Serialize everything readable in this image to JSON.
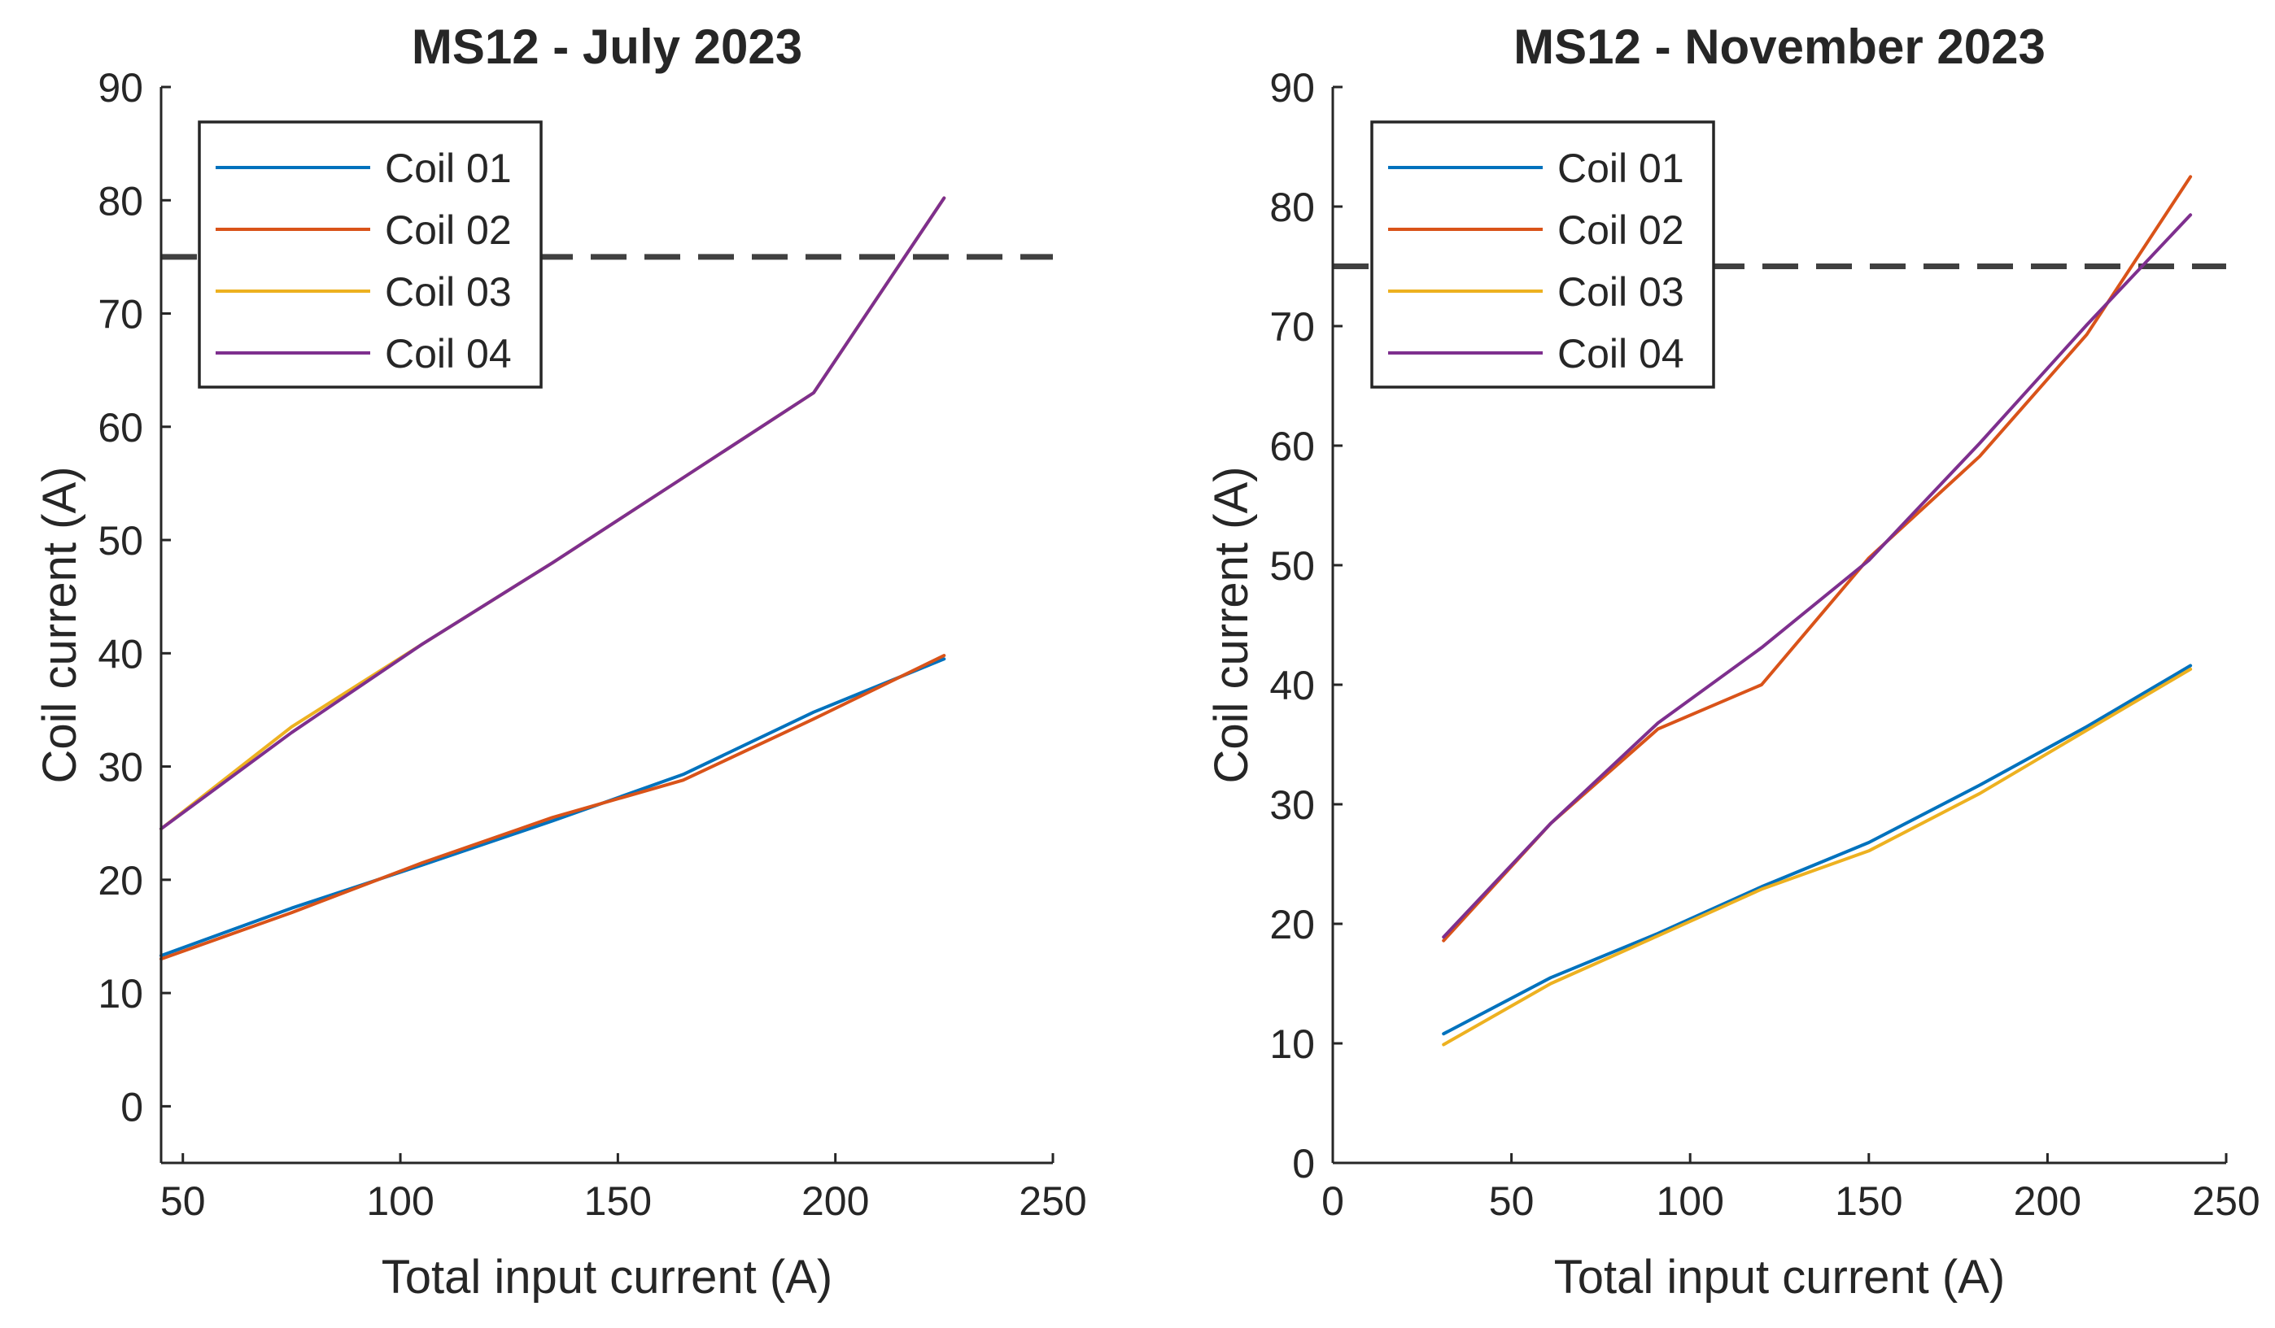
{
  "chart_data": [
    {
      "type": "line",
      "title": "MS12 - July 2023",
      "xlabel": "Total input current (A)",
      "ylabel": "Coil current (A)",
      "xlim": [
        45,
        250
      ],
      "ylim": [
        -5,
        90
      ],
      "xticks": [
        50,
        100,
        150,
        200,
        250
      ],
      "yticks": [
        0,
        10,
        20,
        30,
        40,
        50,
        60,
        70,
        80,
        90
      ],
      "threshold": 75,
      "legend_position": "top-left",
      "series": [
        {
          "name": "Coil 01",
          "color": "#0072BD",
          "x": [
            45,
            75,
            105,
            135,
            165,
            195,
            225
          ],
          "y": [
            13.3,
            17.5,
            21.3,
            25.2,
            29.3,
            34.8,
            39.5
          ]
        },
        {
          "name": "Coil 02",
          "color": "#D95319",
          "x": [
            45,
            75,
            105,
            135,
            165,
            195,
            225
          ],
          "y": [
            13.0,
            17.1,
            21.5,
            25.5,
            28.8,
            34.2,
            39.8
          ]
        },
        {
          "name": "Coil 03",
          "color": "#EDB120",
          "x": [
            45,
            75,
            105,
            135,
            165,
            195,
            225
          ],
          "y": [
            24.5,
            33.5,
            40.8,
            48.0,
            55.5,
            63.0,
            80.2
          ]
        },
        {
          "name": "Coil 04",
          "color": "#7E2F8E",
          "x": [
            45,
            75,
            105,
            135,
            165,
            195,
            225
          ],
          "y": [
            24.5,
            33.0,
            40.8,
            48.0,
            55.5,
            63.0,
            80.2
          ]
        }
      ]
    },
    {
      "type": "line",
      "title": "MS12 - November 2023",
      "xlabel": "Total input current (A)",
      "ylabel": "Coil current (A)",
      "xlim": [
        0,
        250
      ],
      "ylim": [
        0,
        90
      ],
      "xticks": [
        0,
        50,
        100,
        150,
        200,
        250
      ],
      "yticks": [
        0,
        10,
        20,
        30,
        40,
        50,
        60,
        70,
        80,
        90
      ],
      "threshold": 75,
      "legend_position": "top-left",
      "series": [
        {
          "name": "Coil 01",
          "color": "#0072BD",
          "x": [
            31,
            61,
            91,
            120,
            150,
            181,
            211,
            240
          ],
          "y": [
            10.8,
            15.5,
            19.2,
            23.1,
            26.8,
            31.6,
            36.5,
            41.6
          ]
        },
        {
          "name": "Coil 02",
          "color": "#D95319",
          "x": [
            31,
            61,
            91,
            120,
            150,
            181,
            211,
            240
          ],
          "y": [
            18.6,
            28.4,
            36.3,
            40.0,
            50.6,
            59.1,
            69.3,
            82.5
          ]
        },
        {
          "name": "Coil 03",
          "color": "#EDB120",
          "x": [
            31,
            61,
            91,
            120,
            150,
            181,
            211,
            240
          ],
          "y": [
            9.9,
            15.0,
            19.0,
            22.9,
            26.1,
            30.9,
            36.2,
            41.3
          ]
        },
        {
          "name": "Coil 04",
          "color": "#7E2F8E",
          "x": [
            31,
            61,
            91,
            120,
            150,
            181,
            211,
            240
          ],
          "y": [
            18.9,
            28.4,
            36.8,
            43.1,
            50.4,
            60.2,
            70.1,
            79.3
          ]
        }
      ]
    }
  ]
}
